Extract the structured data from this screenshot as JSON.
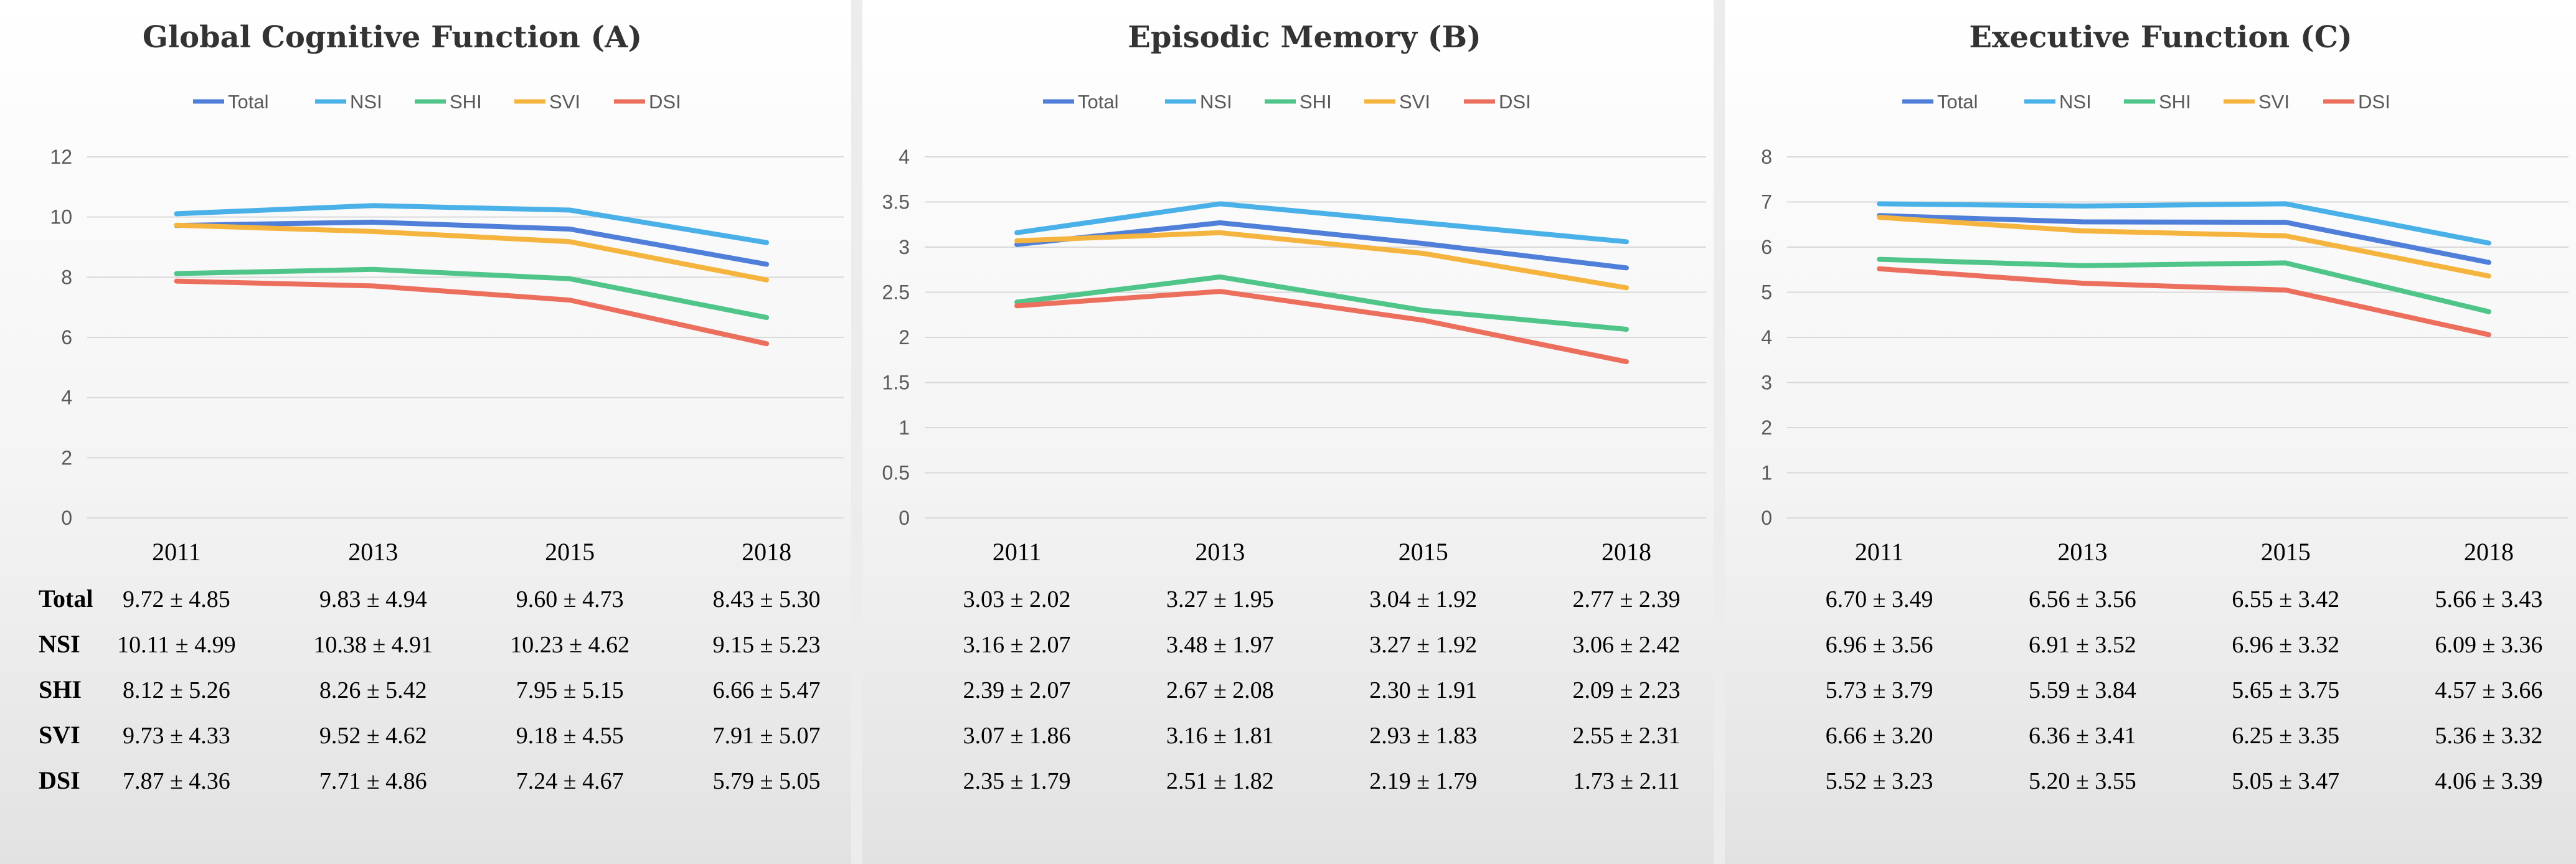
{
  "series_names": [
    "Total",
    "NSI",
    "SHI",
    "SVI",
    "DSI"
  ],
  "colors": {
    "Total": "#4f7fd8",
    "NSI": "#4ab0e8",
    "SHI": "#4fc58a",
    "SVI": "#f5b43e",
    "DSI": "#ec6f5e",
    "grid": "#d9d9d9",
    "background": "#ececec"
  },
  "chart_data": [
    {
      "type": "line",
      "title": "Global Cognitive Function   (A)",
      "categories": [
        "2011",
        "2013",
        "2015",
        "2018"
      ],
      "ylim": [
        0,
        12
      ],
      "yticks": [
        "0",
        "2",
        "4",
        "6",
        "8",
        "10",
        "12"
      ],
      "series": [
        {
          "name": "Total",
          "values": [
            9.72,
            9.83,
            9.6,
            8.43
          ]
        },
        {
          "name": "NSI",
          "values": [
            10.11,
            10.38,
            10.23,
            9.15
          ]
        },
        {
          "name": "SHI",
          "values": [
            8.12,
            8.26,
            7.95,
            6.66
          ]
        },
        {
          "name": "SVI",
          "values": [
            9.73,
            9.52,
            9.18,
            7.91
          ]
        },
        {
          "name": "DSI",
          "values": [
            7.87,
            7.71,
            7.24,
            5.79
          ]
        }
      ],
      "table_rows": [
        {
          "label": "Total",
          "cells": [
            "9.72 ± 4.85",
            "9.83 ± 4.94",
            "9.60 ± 4.73",
            "8.43 ± 5.30"
          ]
        },
        {
          "label": "NSI",
          "cells": [
            "10.11 ± 4.99",
            "10.38 ± 4.91",
            "10.23 ± 4.62",
            "9.15 ± 5.23"
          ]
        },
        {
          "label": "SHI",
          "cells": [
            "8.12 ± 5.26",
            "8.26 ± 5.42",
            "7.95 ± 5.15",
            "6.66 ± 5.47"
          ]
        },
        {
          "label": "SVI",
          "cells": [
            "9.73 ± 4.33",
            "9.52 ± 4.62",
            "9.18 ± 4.55",
            "7.91 ± 5.07"
          ]
        },
        {
          "label": "DSI",
          "cells": [
            "7.87 ± 4.36",
            "7.71 ± 4.86",
            "7.24 ± 4.67",
            "5.79 ± 5.05"
          ]
        }
      ]
    },
    {
      "type": "line",
      "title": "Episodic Memory  (B)",
      "categories": [
        "2011",
        "2013",
        "2015",
        "2018"
      ],
      "ylim": [
        0,
        4
      ],
      "yticks": [
        "0",
        "0.5",
        "1",
        "1.5",
        "2",
        "2.5",
        "3",
        "3.5",
        "4"
      ],
      "series": [
        {
          "name": "Total",
          "values": [
            3.03,
            3.27,
            3.04,
            2.77
          ]
        },
        {
          "name": "NSI",
          "values": [
            3.16,
            3.48,
            3.27,
            3.06
          ]
        },
        {
          "name": "SHI",
          "values": [
            2.39,
            2.67,
            2.3,
            2.09
          ]
        },
        {
          "name": "SVI",
          "values": [
            3.07,
            3.16,
            2.93,
            2.55
          ]
        },
        {
          "name": "DSI",
          "values": [
            2.35,
            2.51,
            2.19,
            1.73
          ]
        }
      ],
      "table_rows": [
        {
          "label": "",
          "cells": [
            "3.03 ± 2.02",
            "3.27 ± 1.95",
            "3.04 ± 1.92",
            "2.77 ± 2.39"
          ]
        },
        {
          "label": "",
          "cells": [
            "3.16 ± 2.07",
            "3.48 ± 1.97",
            "3.27 ± 1.92",
            "3.06 ± 2.42"
          ]
        },
        {
          "label": "",
          "cells": [
            "2.39 ± 2.07",
            "2.67 ± 2.08",
            "2.30 ± 1.91",
            "2.09 ± 2.23"
          ]
        },
        {
          "label": "",
          "cells": [
            "3.07 ± 1.86",
            "3.16 ± 1.81",
            "2.93 ± 1.83",
            "2.55 ± 2.31"
          ]
        },
        {
          "label": "",
          "cells": [
            "2.35 ± 1.79",
            "2.51 ± 1.82",
            "2.19 ± 1.79",
            "1.73 ± 2.11"
          ]
        }
      ]
    },
    {
      "type": "line",
      "title": "Executive Function  (C)",
      "categories": [
        "2011",
        "2013",
        "2015",
        "2018"
      ],
      "ylim": [
        0,
        8
      ],
      "yticks": [
        "0",
        "1",
        "2",
        "3",
        "4",
        "5",
        "6",
        "7",
        "8"
      ],
      "series": [
        {
          "name": "Total",
          "values": [
            6.7,
            6.56,
            6.55,
            5.66
          ]
        },
        {
          "name": "NSI",
          "values": [
            6.96,
            6.91,
            6.96,
            6.09
          ]
        },
        {
          "name": "SHI",
          "values": [
            5.73,
            5.59,
            5.65,
            4.57
          ]
        },
        {
          "name": "SVI",
          "values": [
            6.66,
            6.36,
            6.25,
            5.36
          ]
        },
        {
          "name": "DSI",
          "values": [
            5.52,
            5.2,
            5.05,
            4.06
          ]
        }
      ],
      "table_rows": [
        {
          "label": "",
          "cells": [
            "6.70 ± 3.49",
            "6.56 ± 3.56",
            "6.55 ± 3.42",
            "5.66 ± 3.43"
          ]
        },
        {
          "label": "",
          "cells": [
            "6.96 ± 3.56",
            "6.91 ± 3.52",
            "6.96 ± 3.32",
            "6.09 ± 3.36"
          ]
        },
        {
          "label": "",
          "cells": [
            "5.73 ± 3.79",
            "5.59 ± 3.84",
            "5.65 ± 3.75",
            "4.57 ± 3.66"
          ]
        },
        {
          "label": "",
          "cells": [
            "6.66 ± 3.20",
            "6.36 ± 3.41",
            "6.25 ± 3.35",
            "5.36 ± 3.32"
          ]
        },
        {
          "label": "",
          "cells": [
            "5.52 ± 3.23",
            "5.20 ± 3.55",
            "5.05 ± 3.47",
            "4.06 ± 3.39"
          ]
        }
      ]
    }
  ]
}
